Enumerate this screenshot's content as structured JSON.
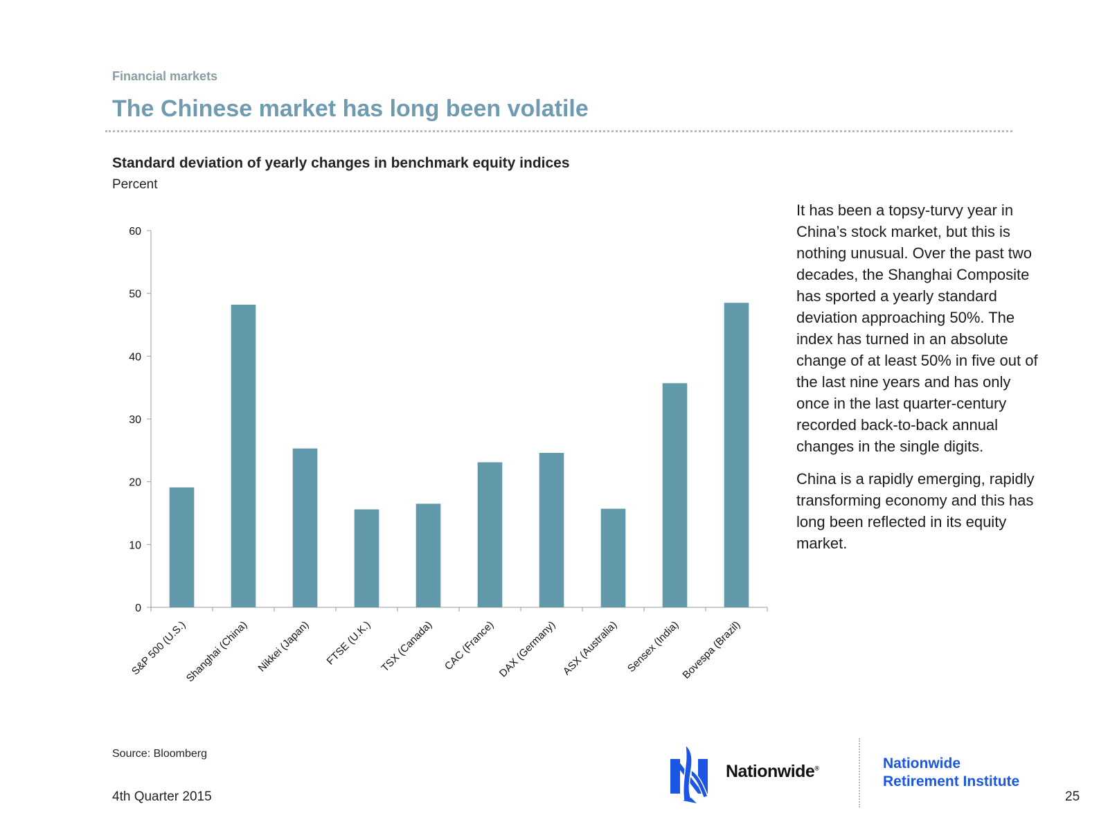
{
  "header": {
    "section": "Financial markets",
    "title": "The Chinese market has long been volatile"
  },
  "chart_data": {
    "type": "bar",
    "title": "Standard deviation of yearly changes in benchmark equity indices",
    "subtitle": "Percent",
    "categories": [
      "S&P 500 (U.S.)",
      "Shanghai (China)",
      "Nikkei (Japan)",
      "FTSE (U.K.)",
      "TSX (Canada)",
      "CAC (France)",
      "DAX (Germany)",
      "ASX (Australia)",
      "Sensex (India)",
      "Bovespa (Brazil)"
    ],
    "values": [
      19.1,
      48.2,
      25.3,
      15.6,
      16.5,
      23.1,
      24.6,
      15.7,
      35.7,
      48.5
    ],
    "ylim": [
      0,
      60
    ],
    "yticks": [
      0,
      10,
      20,
      30,
      40,
      50,
      60
    ],
    "grid": false,
    "bar_color": "#6199aa"
  },
  "commentary": {
    "paragraph1": "It has been a topsy-turvy year in China’s stock market, but this is nothing unusual. Over the past two decades, the Shanghai Composite has sported a yearly standard deviation approaching 50%. The index has turned in an absolute change of at least 50% in five out of the last nine years and has only once in the last quarter-century recorded back-to-back annual changes in the single digits.",
    "paragraph2": "China is a rapidly emerging, rapidly transforming economy and this has long been reflected in its equity market."
  },
  "footer": {
    "source": "Source: Bloomberg",
    "date": "4th Quarter 2015",
    "page_number": "25",
    "brand": "Nationwide",
    "brand_mark": "®",
    "institute_line1": "Nationwide",
    "institute_line2": "Retirement Institute",
    "logo_icon": "eagle-logo-icon",
    "brand_color": "#1a55e3"
  }
}
